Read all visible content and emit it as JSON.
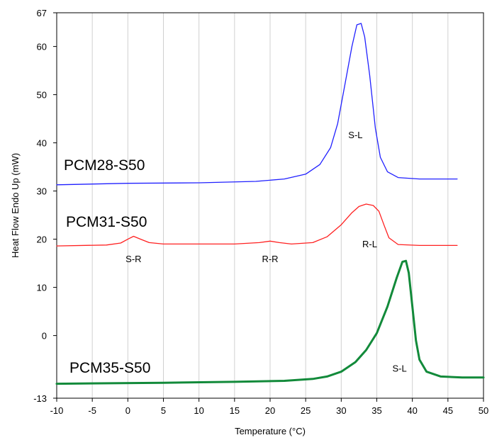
{
  "chart_data": {
    "type": "line",
    "title": "",
    "xlabel": "Temperature (°C)",
    "ylabel": "Heat Flow Endo Up (mW)",
    "xlim": [
      -10,
      50
    ],
    "ylim": [
      -13,
      67
    ],
    "x_ticks": [
      -10,
      -5,
      0,
      5,
      10,
      15,
      20,
      25,
      30,
      35,
      40,
      45,
      50
    ],
    "y_ticks": [
      -13,
      0,
      10,
      20,
      30,
      40,
      50,
      60,
      67
    ],
    "grid": "vertical",
    "legend": "none",
    "series": [
      {
        "name": "PCM28-S50",
        "color": "#2020ff",
        "points": [
          [
            -10,
            31.3
          ],
          [
            0,
            31.6
          ],
          [
            10,
            31.7
          ],
          [
            18,
            32.0
          ],
          [
            22,
            32.5
          ],
          [
            25,
            33.5
          ],
          [
            27,
            35.5
          ],
          [
            28.5,
            39
          ],
          [
            29.5,
            44
          ],
          [
            30.5,
            52
          ],
          [
            31.5,
            60
          ],
          [
            32.2,
            64.5
          ],
          [
            32.8,
            64.8
          ],
          [
            33.3,
            62
          ],
          [
            34,
            54
          ],
          [
            34.8,
            43
          ],
          [
            35.5,
            37
          ],
          [
            36.5,
            34
          ],
          [
            38,
            32.8
          ],
          [
            41,
            32.5
          ],
          [
            46.3,
            32.5
          ]
        ]
      },
      {
        "name": "PCM31-S50",
        "color": "#ff2020",
        "points": [
          [
            -10,
            18.6
          ],
          [
            -3,
            18.8
          ],
          [
            -1,
            19.2
          ],
          [
            0,
            20.0
          ],
          [
            0.8,
            20.6
          ],
          [
            1.8,
            20.0
          ],
          [
            3,
            19.3
          ],
          [
            5,
            19.0
          ],
          [
            10,
            19.0
          ],
          [
            15,
            19.0
          ],
          [
            18.5,
            19.3
          ],
          [
            20,
            19.6
          ],
          [
            21.3,
            19.3
          ],
          [
            23,
            19.0
          ],
          [
            26,
            19.3
          ],
          [
            28,
            20.5
          ],
          [
            30,
            23
          ],
          [
            31.5,
            25.5
          ],
          [
            32.5,
            26.8
          ],
          [
            33.5,
            27.3
          ],
          [
            34.5,
            27.0
          ],
          [
            35.3,
            25.8
          ],
          [
            36,
            23
          ],
          [
            36.7,
            20.3
          ],
          [
            38,
            18.9
          ],
          [
            41,
            18.7
          ],
          [
            46.3,
            18.7
          ]
        ]
      },
      {
        "name": "PCM35-S50",
        "color": "#128a3a",
        "points": [
          [
            -10,
            -10
          ],
          [
            5,
            -9.8
          ],
          [
            15,
            -9.6
          ],
          [
            22,
            -9.4
          ],
          [
            26,
            -9.0
          ],
          [
            28,
            -8.5
          ],
          [
            30,
            -7.5
          ],
          [
            32,
            -5.5
          ],
          [
            33.5,
            -3
          ],
          [
            35,
            0.5
          ],
          [
            36.5,
            6
          ],
          [
            37.8,
            12
          ],
          [
            38.6,
            15.3
          ],
          [
            39.1,
            15.5
          ],
          [
            39.5,
            13
          ],
          [
            40,
            6
          ],
          [
            40.5,
            -1
          ],
          [
            41,
            -5
          ],
          [
            42,
            -7.5
          ],
          [
            44,
            -8.5
          ],
          [
            47,
            -8.7
          ],
          [
            50,
            -8.7
          ]
        ]
      }
    ],
    "series_labels": [
      "PCM28-S50",
      "PCM31-S50",
      "PCM35-S50"
    ],
    "annotations": [
      {
        "text": "S-L",
        "x": 32,
        "y": 41
      },
      {
        "text": "S-R",
        "x": 0.8,
        "y": 15.2
      },
      {
        "text": "R-R",
        "x": 20,
        "y": 15.2
      },
      {
        "text": "R-L",
        "x": 34,
        "y": 18.3
      },
      {
        "text": "S-L",
        "x": 38.2,
        "y": -7.5
      }
    ]
  }
}
